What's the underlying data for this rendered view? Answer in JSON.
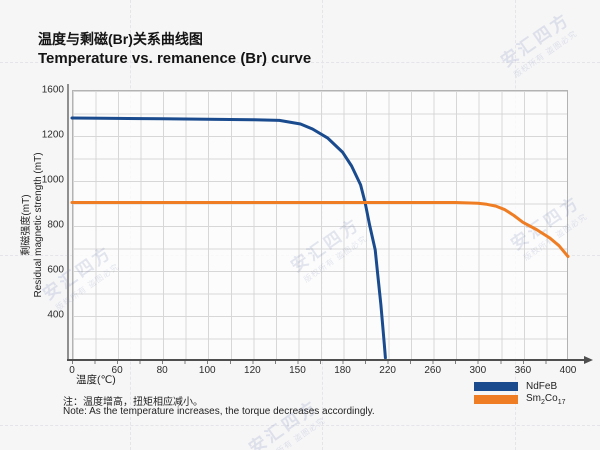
{
  "page": {
    "title_zh": "温度与剩磁(Br)关系曲线图",
    "title_en": "Temperature vs. remanence (Br) curve"
  },
  "axes": {
    "x_title": "温度(℃)",
    "y_title_zh": "剩磁强度(mT)",
    "y_title_en": "Residual magnetic strength (mT)"
  },
  "notes": {
    "zh": "注：温度增高，扭矩相应减小。",
    "en": "Note: As the temperature increases, the torque decreases accordingly."
  },
  "legend": {
    "items": [
      {
        "label": "NdFeB",
        "color": "#1a4b8e"
      },
      {
        "label_prefix": "Sm",
        "label_sub1": "2",
        "label_mid": "Co",
        "label_sub2": "17",
        "color": "#ee7d23"
      }
    ]
  },
  "watermark": {
    "line1": "安汇四方",
    "line2": "版权所有 盗图必究"
  },
  "colors": {
    "ndfeb": "#1a4b8e",
    "sm2co17": "#ee7d23",
    "grid": "#d7d7d7",
    "axis": "#4f4f4f"
  },
  "chart_data": {
    "type": "line",
    "title": "Temperature vs. remanence (Br) curve",
    "xlabel": "温度(℃)",
    "ylabel": "Residual magnetic strength (mT)",
    "x_ticks": [
      0,
      60,
      80,
      100,
      120,
      150,
      180,
      220,
      260,
      300,
      360,
      400
    ],
    "y_ticks": [
      1600,
      1200,
      1000,
      800,
      600,
      400,
      0
    ],
    "y_tick_labels": [
      1600,
      1200,
      1000,
      800,
      600,
      400
    ],
    "x_scale": "ticks-evenly-spaced",
    "grid": true,
    "legend_position": "bottom-right",
    "series": [
      {
        "name": "NdFeB",
        "color": "#1a4b8e",
        "points": [
          [
            0,
            1351
          ],
          [
            40,
            1349
          ],
          [
            80,
            1344
          ],
          [
            100,
            1340
          ],
          [
            120,
            1336
          ],
          [
            138,
            1330
          ],
          [
            152,
            1298
          ],
          [
            160,
            1253
          ],
          [
            170,
            1187
          ],
          [
            180,
            1124
          ],
          [
            188,
            1062
          ],
          [
            196,
            978
          ],
          [
            200,
            900
          ],
          [
            204,
            800
          ],
          [
            209,
            690
          ],
          [
            211,
            590
          ],
          [
            214,
            445
          ],
          [
            216,
            265
          ],
          [
            217,
            140
          ],
          [
            218,
            20
          ]
        ]
      },
      {
        "name": "Sm2Co17",
        "color": "#ee7d23",
        "points": [
          [
            0,
            900
          ],
          [
            60,
            900
          ],
          [
            120,
            900
          ],
          [
            180,
            900
          ],
          [
            240,
            900
          ],
          [
            280,
            900
          ],
          [
            300,
            897
          ],
          [
            312,
            892
          ],
          [
            324,
            884
          ],
          [
            336,
            868
          ],
          [
            348,
            842
          ],
          [
            360,
            812
          ],
          [
            372,
            780
          ],
          [
            384,
            742
          ],
          [
            392,
            708
          ],
          [
            400,
            660
          ]
        ]
      }
    ]
  }
}
